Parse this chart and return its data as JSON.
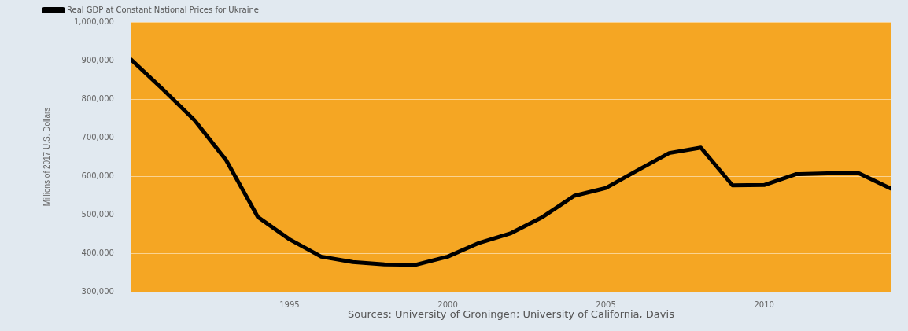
{
  "chart_data": {
    "type": "line",
    "ylabel": "Millions of 2017 U.S. Dollars",
    "x": [
      1990,
      1991,
      1992,
      1993,
      1994,
      1995,
      1996,
      1997,
      1998,
      1999,
      2000,
      2001,
      2002,
      2003,
      2004,
      2005,
      2006,
      2007,
      2008,
      2009,
      2010,
      2011,
      2012,
      2013,
      2014
    ],
    "series": [
      {
        "name": "Real GDP at Constant National Prices for Ukraine",
        "color": "#000000",
        "values": [
          902000,
          825000,
          745000,
          641000,
          494000,
          436000,
          391000,
          377000,
          371000,
          370000,
          391000,
          427000,
          452000,
          494000,
          549000,
          569000,
          615000,
          660000,
          674000,
          576000,
          577000,
          605000,
          607000,
          607000,
          568000
        ]
      }
    ],
    "xlim": [
      1990,
      2014
    ],
    "xticks": [
      1995,
      2000,
      2005,
      2010
    ],
    "ylim": [
      300000,
      1000000
    ],
    "yticks": [
      {
        "value": 300000,
        "label": "300,000"
      },
      {
        "value": 400000,
        "label": "400,000"
      },
      {
        "value": 500000,
        "label": "500,000"
      },
      {
        "value": 600000,
        "label": "600,000"
      },
      {
        "value": 700000,
        "label": "700,000"
      },
      {
        "value": 800000,
        "label": "800,000"
      },
      {
        "value": 900000,
        "label": "900,000"
      },
      {
        "value": 1000000,
        "label": "1,000,000"
      }
    ],
    "grid": "y",
    "legend": "top left",
    "marker": "none",
    "line_style": "solid",
    "annotations": [
      "Sources: University of Groningen; University of California, Davis"
    ]
  }
}
